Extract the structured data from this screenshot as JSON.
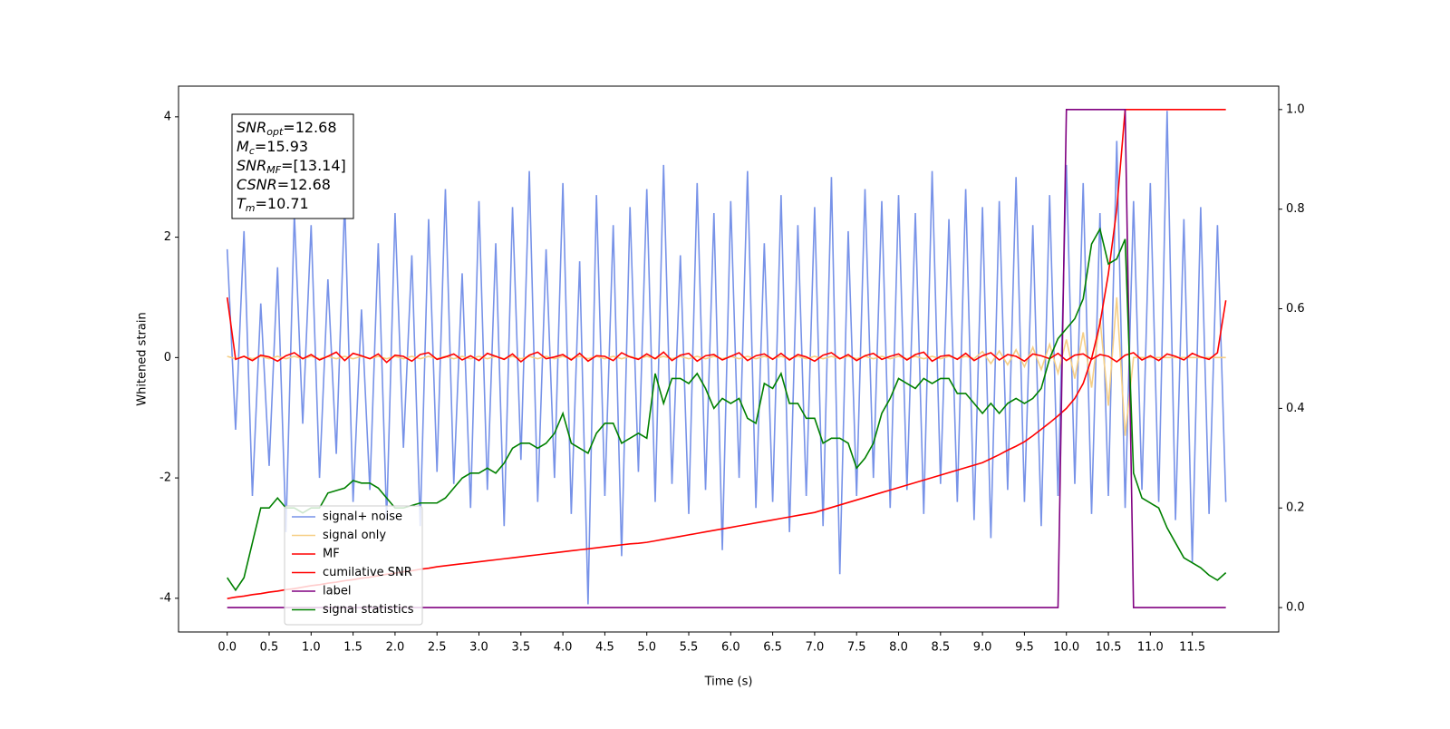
{
  "chart_data": {
    "type": "line",
    "xlabel": "Time (s)",
    "ylabel": "Whitened strain",
    "xlim": [
      -0.58,
      12.53
    ],
    "ylim": [
      -4.56,
      4.51
    ],
    "y2lim": [
      -0.049,
      1.047
    ],
    "xticks": [
      {
        "value": 0,
        "label": "0.0"
      },
      {
        "value": 0.5,
        "label": "0.5"
      },
      {
        "value": 1,
        "label": "1.0"
      },
      {
        "value": 1.5,
        "label": "1.5"
      },
      {
        "value": 2,
        "label": "2.0"
      },
      {
        "value": 2.5,
        "label": "2.5"
      },
      {
        "value": 3,
        "label": "3.0"
      },
      {
        "value": 3.5,
        "label": "3.5"
      },
      {
        "value": 4,
        "label": "4.0"
      },
      {
        "value": 4.5,
        "label": "4.5"
      },
      {
        "value": 5,
        "label": "5.0"
      },
      {
        "value": 5.5,
        "label": "5.5"
      },
      {
        "value": 6,
        "label": "6.0"
      },
      {
        "value": 6.5,
        "label": "6.5"
      },
      {
        "value": 7,
        "label": "7.0"
      },
      {
        "value": 7.5,
        "label": "7.5"
      },
      {
        "value": 8,
        "label": "8.0"
      },
      {
        "value": 8.5,
        "label": "8.5"
      },
      {
        "value": 9,
        "label": "9.0"
      },
      {
        "value": 9.5,
        "label": "9.5"
      },
      {
        "value": 10,
        "label": "10.0"
      },
      {
        "value": 10.5,
        "label": "10.5"
      },
      {
        "value": 11,
        "label": "11.0"
      },
      {
        "value": 11.5,
        "label": "11.5"
      }
    ],
    "yticks": [
      -4,
      -2,
      0,
      2,
      4
    ],
    "y2ticks": [
      {
        "value": 0,
        "label": "0.0"
      },
      {
        "value": 0.2,
        "label": "0.2"
      },
      {
        "value": 0.4,
        "label": "0.4"
      },
      {
        "value": 0.6,
        "label": "0.6"
      },
      {
        "value": 0.8,
        "label": "0.8"
      },
      {
        "value": 1,
        "label": "1.0"
      }
    ],
    "legend": "lower left",
    "annotation": [
      {
        "symbol": "SNR",
        "subscript": "opt",
        "text": "=12.68"
      },
      {
        "symbol": "M",
        "subscript": "c",
        "text": "=15.93"
      },
      {
        "symbol": "SNR",
        "subscript": "MF",
        "text": "=[13.14]"
      },
      {
        "symbol": "CSNR",
        "subscript": "",
        "text": "=12.68"
      },
      {
        "symbol": "T",
        "subscript": "m",
        "text": "=10.71"
      }
    ],
    "x": [
      0,
      0.1,
      0.2,
      0.3,
      0.4,
      0.5,
      0.6,
      0.7,
      0.8,
      0.9,
      1,
      1.1,
      1.2,
      1.3,
      1.4,
      1.5,
      1.6,
      1.7,
      1.8,
      1.9,
      2,
      2.1,
      2.2,
      2.3,
      2.4,
      2.5,
      2.6,
      2.7,
      2.8,
      2.9,
      3,
      3.1,
      3.2,
      3.3,
      3.4,
      3.5,
      3.6,
      3.7,
      3.8,
      3.9,
      4,
      4.1,
      4.2,
      4.3,
      4.4,
      4.5,
      4.6,
      4.7,
      4.8,
      4.9,
      5,
      5.1,
      5.2,
      5.3,
      5.4,
      5.5,
      5.6,
      5.7,
      5.8,
      5.9,
      6,
      6.1,
      6.2,
      6.3,
      6.4,
      6.5,
      6.6,
      6.7,
      6.8,
      6.9,
      7,
      7.1,
      7.2,
      7.3,
      7.4,
      7.5,
      7.6,
      7.7,
      7.8,
      7.9,
      8,
      8.1,
      8.2,
      8.3,
      8.4,
      8.5,
      8.6,
      8.7,
      8.8,
      8.9,
      9,
      9.1,
      9.2,
      9.3,
      9.4,
      9.5,
      9.6,
      9.7,
      9.8,
      9.9,
      10,
      10.1,
      10.2,
      10.3,
      10.4,
      10.5,
      10.6,
      10.7,
      10.8,
      10.9,
      11,
      11.1,
      11.2,
      11.3,
      11.4,
      11.5,
      11.6,
      11.7,
      11.8,
      11.9
    ],
    "series": [
      {
        "name": "signal+ noise",
        "color": "#7792e8",
        "axis": "y",
        "values": [
          1.8,
          -1.2,
          2.1,
          -2.3,
          0.9,
          -1.8,
          1.5,
          -2.9,
          2.4,
          -1.1,
          2.2,
          -2.0,
          1.3,
          -1.6,
          2.6,
          -2.4,
          0.8,
          -2.2,
          1.9,
          -2.7,
          2.4,
          -1.5,
          1.7,
          -2.8,
          2.3,
          -1.9,
          2.8,
          -2.1,
          1.4,
          -2.5,
          2.6,
          -2.2,
          1.9,
          -2.8,
          2.5,
          -1.7,
          3.1,
          -2.4,
          1.8,
          -2.0,
          2.9,
          -2.6,
          1.6,
          -4.1,
          2.7,
          -2.3,
          2.2,
          -3.3,
          2.5,
          -1.9,
          2.8,
          -2.4,
          3.2,
          -2.1,
          1.7,
          -2.6,
          2.9,
          -2.2,
          2.4,
          -3.2,
          2.6,
          -2.0,
          3.1,
          -2.5,
          1.9,
          -2.4,
          2.7,
          -2.9,
          2.2,
          -2.3,
          2.5,
          -2.8,
          3.0,
          -3.6,
          2.1,
          -2.3,
          2.8,
          -2.0,
          2.6,
          -2.5,
          2.7,
          -2.2,
          2.4,
          -2.6,
          3.1,
          -2.1,
          2.3,
          -2.4,
          2.8,
          -2.7,
          2.5,
          -3.0,
          2.6,
          -2.2,
          3.0,
          -2.4,
          2.2,
          -2.8,
          2.7,
          -2.3,
          3.2,
          -2.1,
          2.9,
          -2.6,
          2.4,
          -2.3,
          3.6,
          -2.5,
          2.6,
          -2.2,
          2.9,
          -2.4,
          4.1,
          -2.7,
          2.3,
          -3.4,
          2.5,
          -2.6,
          2.2,
          -2.4
        ]
      },
      {
        "name": "signal only",
        "color": "#f6cf86",
        "axis": "y",
        "values": [
          0.02,
          -0.02,
          0.02,
          -0.02,
          0.02,
          -0.02,
          0.02,
          -0.02,
          0.02,
          -0.02,
          0.02,
          -0.02,
          0.02,
          -0.02,
          0.02,
          -0.02,
          0.02,
          -0.02,
          0.02,
          -0.02,
          0.02,
          -0.02,
          0.02,
          -0.02,
          0.02,
          -0.02,
          0.02,
          -0.02,
          0.02,
          -0.02,
          0.02,
          -0.02,
          0.02,
          -0.02,
          0.02,
          -0.02,
          0.02,
          -0.02,
          0.02,
          -0.02,
          0.02,
          -0.02,
          0.02,
          -0.02,
          0.02,
          -0.02,
          0.02,
          -0.02,
          0.02,
          -0.02,
          0.02,
          -0.02,
          0.02,
          -0.02,
          0.02,
          -0.02,
          0.02,
          -0.02,
          0.02,
          -0.02,
          0.02,
          -0.02,
          0.02,
          -0.02,
          0.02,
          -0.02,
          0.02,
          -0.02,
          0.02,
          -0.02,
          0.02,
          -0.02,
          0.02,
          -0.02,
          0.02,
          -0.02,
          0.02,
          -0.02,
          0.02,
          -0.02,
          0.02,
          -0.02,
          0.02,
          -0.02,
          0.02,
          -0.02,
          0.02,
          -0.02,
          0.02,
          -0.02,
          0.1,
          -0.1,
          0.11,
          -0.12,
          0.13,
          -0.15,
          0.17,
          -0.2,
          0.22,
          -0.26,
          0.3,
          -0.35,
          0.42,
          -0.5,
          0.65,
          -0.8,
          1.0,
          -1.3,
          0,
          0,
          0,
          0,
          0,
          0,
          0,
          0,
          0,
          0,
          0,
          0
        ]
      },
      {
        "name": "MF",
        "color": "#ff0000",
        "axis": "y",
        "values": [
          1.0,
          -0.03,
          0.02,
          -0.05,
          0.04,
          0.01,
          -0.06,
          0.03,
          0.08,
          -0.02,
          0.05,
          -0.04,
          0.02,
          0.09,
          -0.05,
          0.07,
          0.03,
          -0.02,
          0.06,
          -0.08,
          0.04,
          0.02,
          -0.06,
          0.05,
          0.08,
          -0.03,
          0.01,
          0.06,
          -0.04,
          0.03,
          -0.05,
          0.07,
          0.02,
          -0.03,
          0.06,
          -0.07,
          0.04,
          0.09,
          -0.02,
          0.01,
          0.05,
          -0.04,
          0.07,
          -0.06,
          0.03,
          0.02,
          -0.05,
          0.08,
          0.01,
          -0.03,
          0.06,
          -0.02,
          0.09,
          -0.05,
          0.04,
          0.07,
          -0.06,
          0.03,
          0.05,
          -0.04,
          0.02,
          0.08,
          -0.05,
          0.03,
          0.06,
          -0.03,
          0.07,
          -0.04,
          0.05,
          0.01,
          -0.06,
          0.04,
          0.08,
          -0.02,
          0.05,
          -0.05,
          0.03,
          0.07,
          -0.03,
          0.02,
          0.06,
          -0.04,
          0.05,
          0.09,
          -0.06,
          0.02,
          0.04,
          -0.03,
          0.07,
          -0.05,
          0.03,
          0.08,
          -0.04,
          0.05,
          0.02,
          -0.06,
          0.06,
          0.03,
          -0.02,
          0.07,
          -0.05,
          0.04,
          0.06,
          -0.03,
          0.05,
          0.02,
          -0.07,
          0.04,
          0.08,
          -0.04,
          0.03,
          -0.05,
          0.06,
          0.02,
          -0.04,
          0.07,
          0.01,
          -0.03,
          0.08,
          0.95
        ]
      },
      {
        "name": "cumilative SNR",
        "color": "#ff0000",
        "axis": "y2",
        "values": [
          0.018,
          0.021,
          0.023,
          0.026,
          0.028,
          0.031,
          0.033,
          0.036,
          0.038,
          0.041,
          0.044,
          0.046,
          0.049,
          0.051,
          0.054,
          0.056,
          0.059,
          0.061,
          0.064,
          0.067,
          0.069,
          0.072,
          0.074,
          0.077,
          0.079,
          0.082,
          0.084,
          0.086,
          0.088,
          0.09,
          0.092,
          0.094,
          0.096,
          0.098,
          0.1,
          0.102,
          0.104,
          0.106,
          0.108,
          0.11,
          0.112,
          0.114,
          0.116,
          0.118,
          0.12,
          0.122,
          0.124,
          0.126,
          0.128,
          0.129,
          0.131,
          0.134,
          0.137,
          0.14,
          0.143,
          0.146,
          0.149,
          0.152,
          0.155,
          0.158,
          0.161,
          0.164,
          0.167,
          0.17,
          0.173,
          0.176,
          0.179,
          0.182,
          0.185,
          0.188,
          0.191,
          0.196,
          0.201,
          0.206,
          0.211,
          0.216,
          0.221,
          0.226,
          0.231,
          0.236,
          0.241,
          0.246,
          0.251,
          0.256,
          0.261,
          0.266,
          0.271,
          0.276,
          0.281,
          0.286,
          0.291,
          0.299,
          0.307,
          0.316,
          0.324,
          0.333,
          0.345,
          0.358,
          0.371,
          0.385,
          0.4,
          0.42,
          0.45,
          0.5,
          0.57,
          0.67,
          0.8,
          1.0,
          1.0,
          1.0,
          1.0,
          1.0,
          1.0,
          1.0,
          1.0,
          1.0,
          1.0,
          1.0,
          1.0,
          1.0
        ]
      },
      {
        "name": "label",
        "color": "#800080",
        "axis": "y2",
        "values": [
          0,
          0,
          0,
          0,
          0,
          0,
          0,
          0,
          0,
          0,
          0,
          0,
          0,
          0,
          0,
          0,
          0,
          0,
          0,
          0,
          0,
          0,
          0,
          0,
          0,
          0,
          0,
          0,
          0,
          0,
          0,
          0,
          0,
          0,
          0,
          0,
          0,
          0,
          0,
          0,
          0,
          0,
          0,
          0,
          0,
          0,
          0,
          0,
          0,
          0,
          0,
          0,
          0,
          0,
          0,
          0,
          0,
          0,
          0,
          0,
          0,
          0,
          0,
          0,
          0,
          0,
          0,
          0,
          0,
          0,
          0,
          0,
          0,
          0,
          0,
          0,
          0,
          0,
          0,
          0,
          0,
          0,
          0,
          0,
          0,
          0,
          0,
          0,
          0,
          0,
          0,
          0,
          0,
          0,
          0,
          0,
          0,
          0,
          0,
          0,
          1,
          1,
          1,
          1,
          1,
          1,
          1,
          1,
          0,
          0,
          0,
          0,
          0,
          0,
          0,
          0,
          0,
          0,
          0,
          0
        ]
      },
      {
        "name": "signal statistics",
        "color": "#008000",
        "axis": "y2",
        "values": [
          0.06,
          0.035,
          0.06,
          0.13,
          0.2,
          0.2,
          0.22,
          0.2,
          0.2,
          0.19,
          0.2,
          0.2,
          0.23,
          0.235,
          0.24,
          0.255,
          0.25,
          0.25,
          0.24,
          0.22,
          0.2,
          0.2,
          0.205,
          0.21,
          0.21,
          0.21,
          0.22,
          0.24,
          0.26,
          0.27,
          0.27,
          0.28,
          0.27,
          0.29,
          0.32,
          0.33,
          0.33,
          0.32,
          0.33,
          0.35,
          0.39,
          0.33,
          0.32,
          0.31,
          0.35,
          0.37,
          0.37,
          0.33,
          0.34,
          0.35,
          0.34,
          0.47,
          0.41,
          0.46,
          0.46,
          0.45,
          0.47,
          0.44,
          0.4,
          0.42,
          0.41,
          0.42,
          0.38,
          0.37,
          0.45,
          0.44,
          0.47,
          0.41,
          0.41,
          0.38,
          0.38,
          0.33,
          0.34,
          0.34,
          0.33,
          0.28,
          0.3,
          0.33,
          0.39,
          0.42,
          0.46,
          0.45,
          0.44,
          0.46,
          0.45,
          0.46,
          0.46,
          0.43,
          0.43,
          0.41,
          0.39,
          0.41,
          0.39,
          0.41,
          0.42,
          0.41,
          0.42,
          0.44,
          0.5,
          0.54,
          0.56,
          0.58,
          0.62,
          0.73,
          0.76,
          0.69,
          0.7,
          0.74,
          0.27,
          0.22,
          0.21,
          0.2,
          0.16,
          0.13,
          0.1,
          0.09,
          0.08,
          0.065,
          0.055,
          0.07
        ]
      }
    ]
  }
}
